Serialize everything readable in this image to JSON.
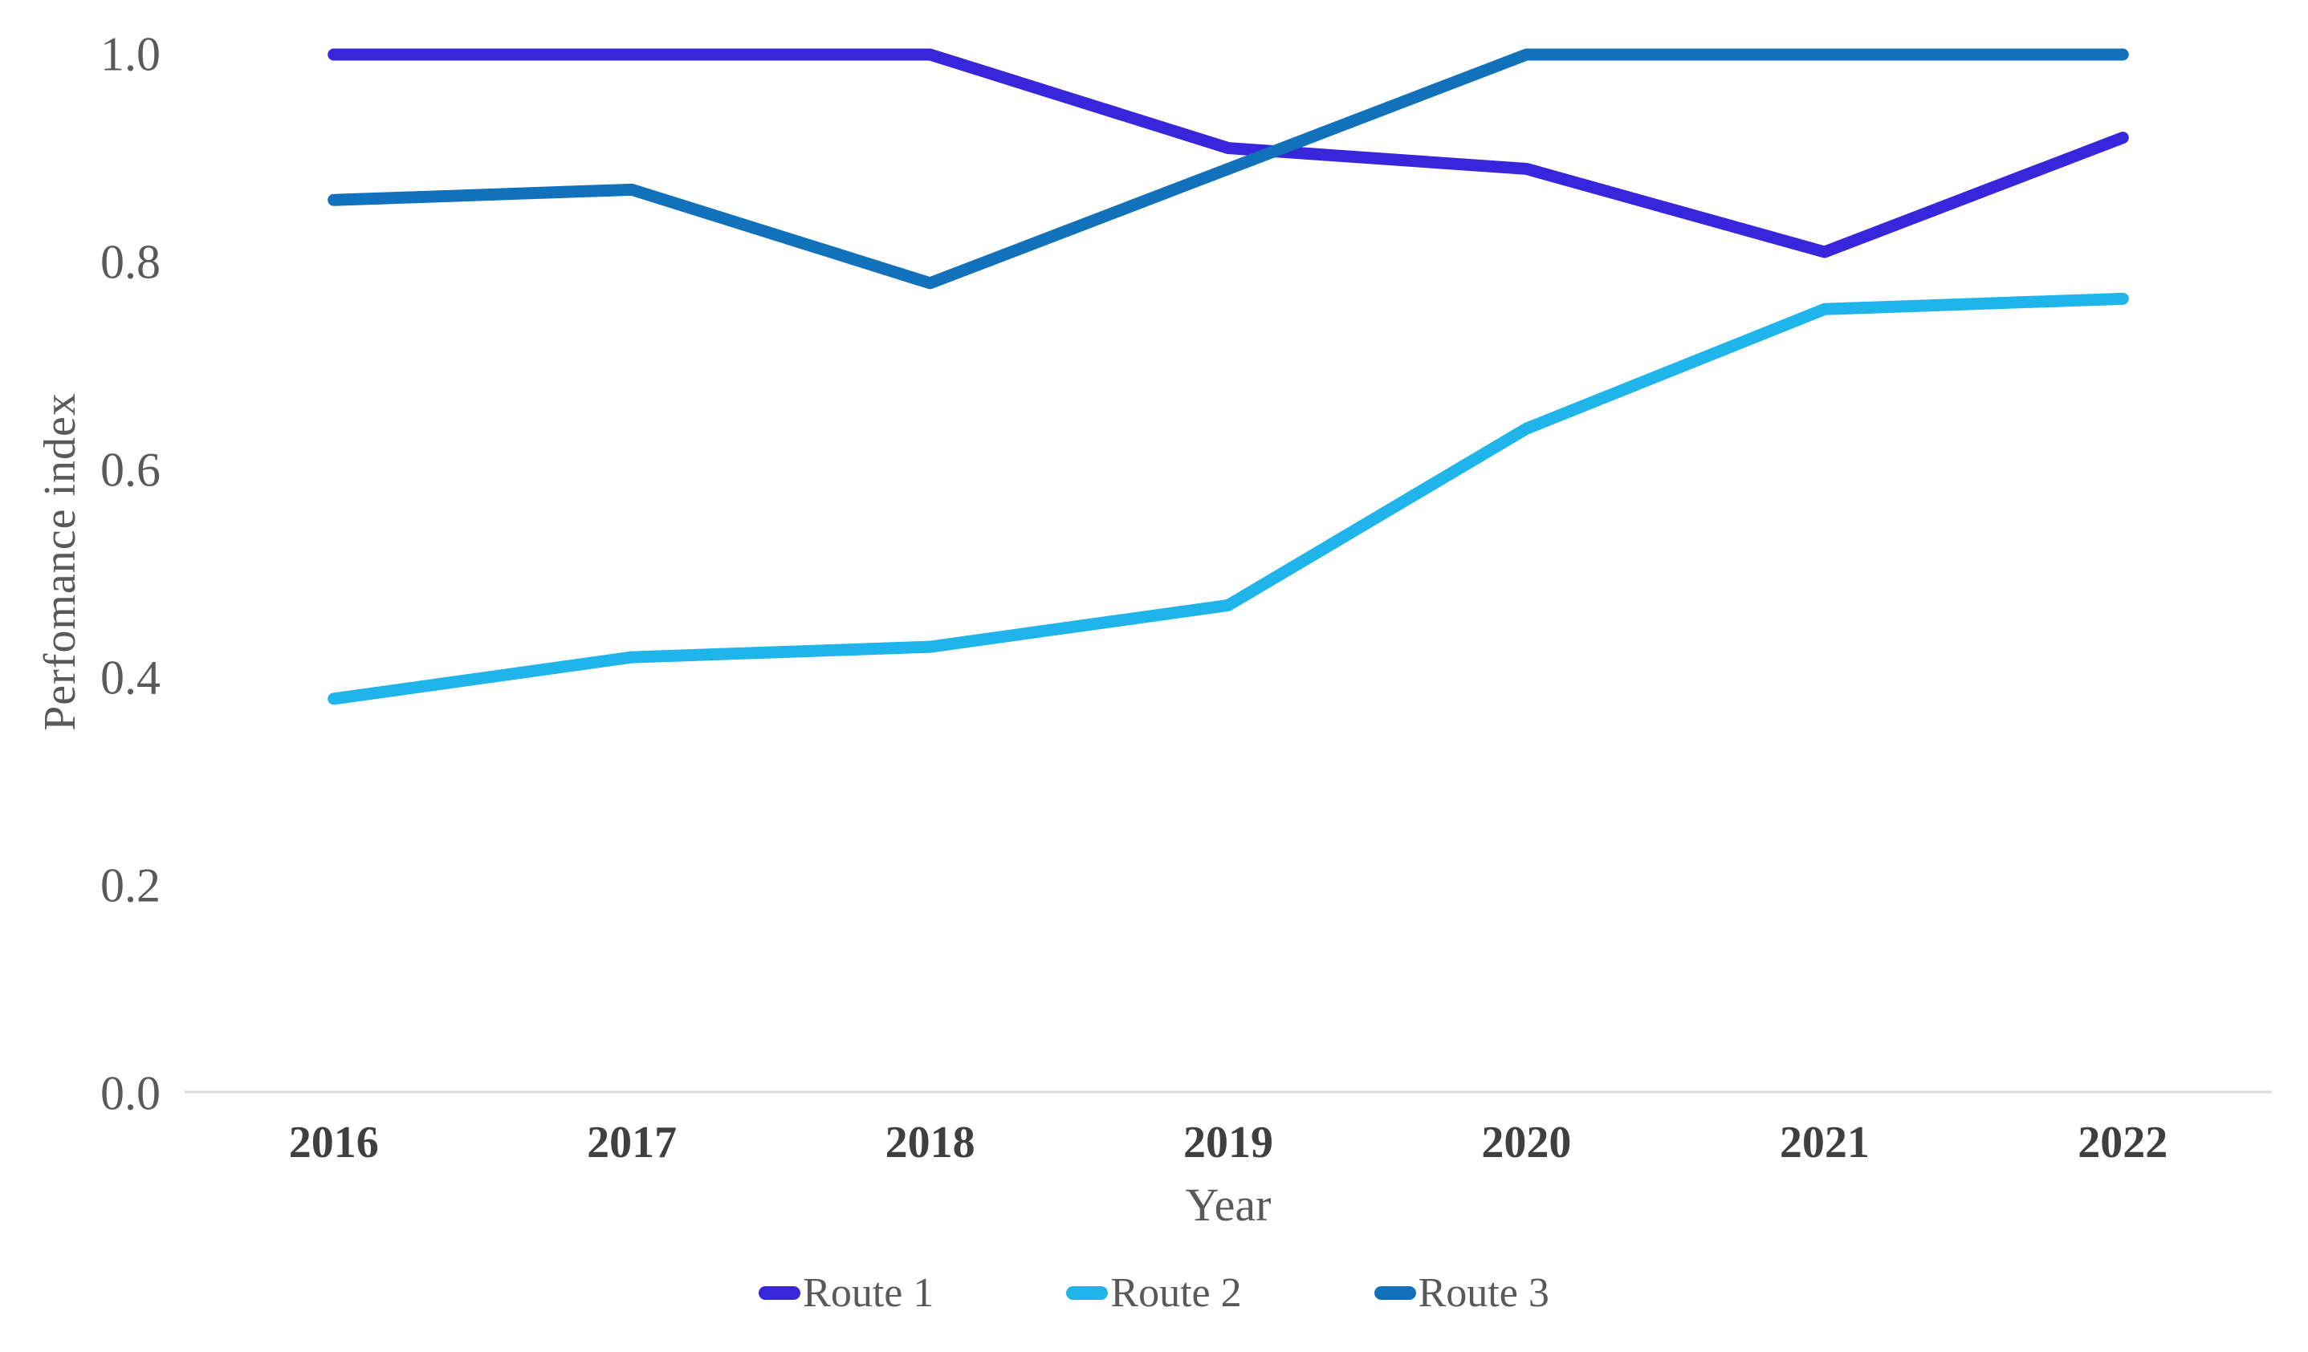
{
  "chart_data": {
    "type": "line",
    "title": "",
    "xlabel": "Year",
    "ylabel": "Perfomance index",
    "categories": [
      "2016",
      "2017",
      "2018",
      "2019",
      "2020",
      "2021",
      "2022"
    ],
    "series": [
      {
        "name": "Route 1",
        "color": "#3726DC",
        "values": [
          1.0,
          1.0,
          1.0,
          0.91,
          0.89,
          0.81,
          0.92
        ]
      },
      {
        "name": "Route 2",
        "color": "#1FB4EA",
        "values": [
          0.38,
          0.42,
          0.43,
          0.47,
          0.64,
          0.755,
          0.765
        ]
      },
      {
        "name": "Route 3",
        "color": "#1171BB",
        "values": [
          0.86,
          0.87,
          0.78,
          0.89,
          1.0,
          1.0,
          1.0
        ]
      }
    ],
    "ylim": [
      0.0,
      1.0
    ],
    "yticks": [
      "1.0",
      "0.8",
      "0.6",
      "0.4",
      "0.2",
      "0.0"
    ],
    "ytick_values": [
      1.0,
      0.8,
      0.6,
      0.4,
      0.2,
      0.0
    ],
    "grid": false,
    "legend_position": "bottom",
    "axis_line_color": "#D9D9D9",
    "ytick_text_color": "#595959",
    "xtick_text_color": "#3F3F3F",
    "line_width": 15
  }
}
